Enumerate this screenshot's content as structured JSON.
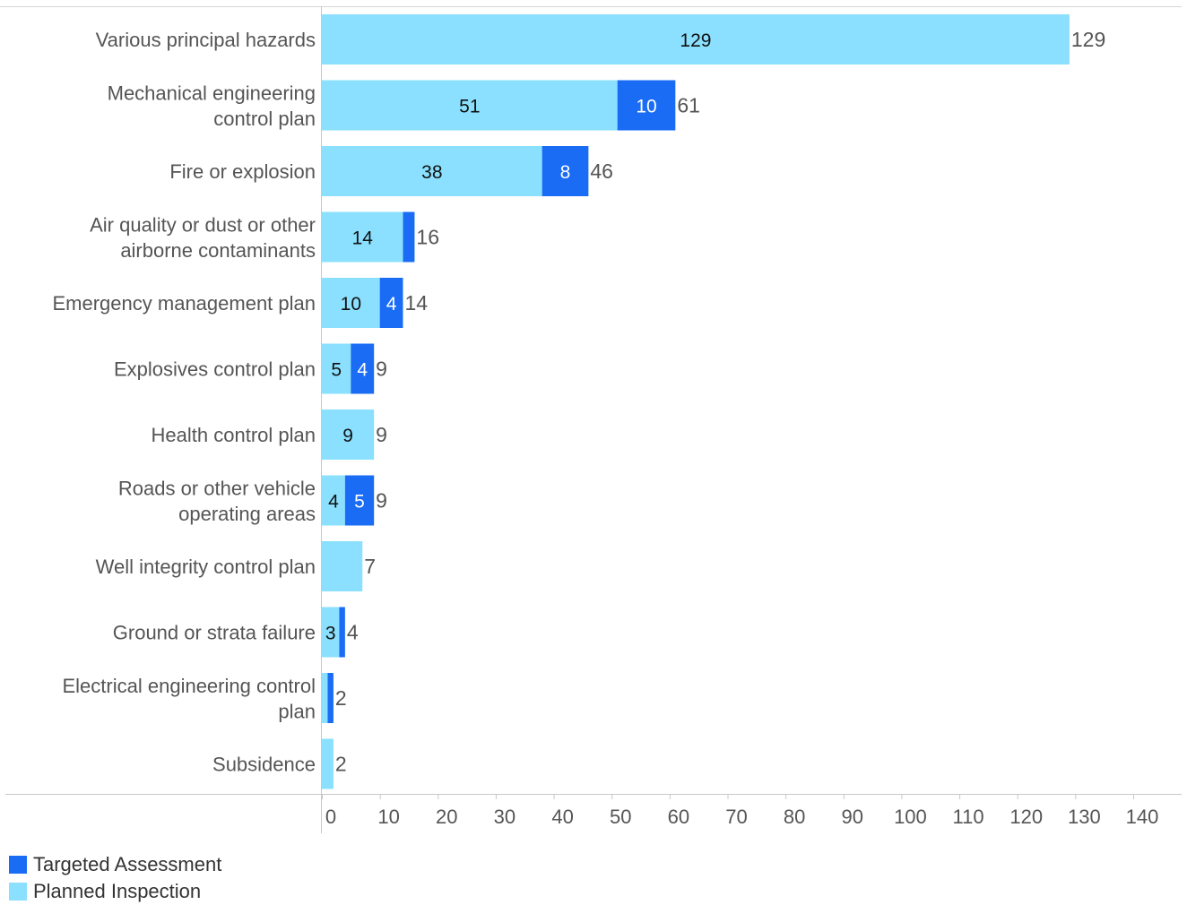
{
  "chart_data": {
    "type": "bar",
    "orientation": "horizontal",
    "stacked": true,
    "categories": [
      "Various principal hazards",
      "Mechanical engineering control plan",
      "Fire or explosion",
      "Air quality or dust or other airborne contaminants",
      "Emergency management plan",
      "Explosives control plan",
      "Health control plan",
      "Roads or other vehicle operating areas",
      "Well integrity control plan",
      "Ground or strata failure",
      "Electrical engineering control plan",
      "Subsidence"
    ],
    "category_lines": [
      [
        "Various principal hazards"
      ],
      [
        "Mechanical engineering",
        "control plan"
      ],
      [
        "Fire or explosion"
      ],
      [
        "Air quality or dust or other",
        "airborne contaminants"
      ],
      [
        "Emergency management plan"
      ],
      [
        "Explosives control plan"
      ],
      [
        "Health control plan"
      ],
      [
        "Roads or other vehicle",
        "operating areas"
      ],
      [
        "Well integrity control plan"
      ],
      [
        "Ground or strata failure"
      ],
      [
        "Electrical engineering control",
        "plan"
      ],
      [
        "Subsidence"
      ]
    ],
    "series": [
      {
        "name": "Planned Inspection",
        "color": "#8ae0fe",
        "values": [
          129,
          51,
          38,
          14,
          10,
          5,
          9,
          4,
          7,
          3,
          1,
          2
        ],
        "labels": [
          "129",
          "51",
          "38",
          "14",
          "10",
          "5",
          "9",
          "4",
          "",
          "3",
          "",
          ""
        ]
      },
      {
        "name": "Targeted Assessment",
        "color": "#1a6cf5",
        "values": [
          0,
          10,
          8,
          2,
          4,
          4,
          0,
          5,
          0,
          1,
          1,
          0
        ],
        "labels": [
          "",
          "10",
          "8",
          "",
          "4",
          "4",
          "",
          "5",
          "",
          "",
          "",
          ""
        ]
      }
    ],
    "totals": [
      129,
      61,
      46,
      16,
      14,
      9,
      9,
      9,
      7,
      4,
      2,
      2
    ],
    "total_labels": [
      "129",
      "61",
      "46",
      "16",
      "14",
      "9",
      "9",
      "9",
      "7",
      "4",
      "2",
      "2"
    ],
    "x_ticks": [
      0,
      10,
      20,
      30,
      40,
      50,
      60,
      70,
      80,
      90,
      100,
      110,
      120,
      130,
      140
    ],
    "x_tick_labels": [
      "0",
      "10",
      "20",
      "30",
      "40",
      "50",
      "60",
      "70",
      "80",
      "90",
      "100",
      "110",
      "120",
      "130",
      "140"
    ],
    "xlim": [
      0,
      142
    ],
    "title": "",
    "xlabel": "",
    "ylabel": "",
    "grid": false,
    "legend_position": "bottom-left"
  },
  "legend": {
    "items": [
      {
        "label": "Targeted Assessment",
        "color": "#1a6cf5"
      },
      {
        "label": "Planned Inspection",
        "color": "#8ae0fe"
      }
    ]
  }
}
